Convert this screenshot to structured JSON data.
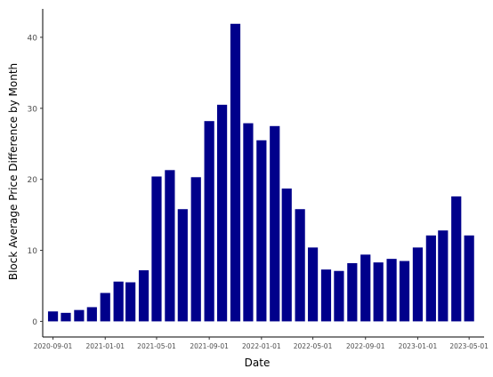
{
  "chart_data": {
    "type": "bar",
    "xlabel": "Date",
    "ylabel": "Block Average Price Difference by Month",
    "bar_color": "#00008b",
    "axis_color": "#000000",
    "ylim": [
      -2.2,
      44
    ],
    "yticks": [
      0,
      10,
      20,
      30,
      40
    ],
    "xlim": [
      "2020-08-08",
      "2023-06-05"
    ],
    "xticks": [
      "2020-09-01",
      "2021-01-01",
      "2021-05-01",
      "2021-09-01",
      "2022-01-01",
      "2022-05-01",
      "2022-09-01",
      "2023-01-01",
      "2023-05-01"
    ],
    "grid": false,
    "legend": "none",
    "x": [
      "2020-09-01",
      "2020-10-01",
      "2020-11-01",
      "2020-12-01",
      "2021-01-01",
      "2021-02-01",
      "2021-03-01",
      "2021-04-01",
      "2021-05-01",
      "2021-06-01",
      "2021-07-01",
      "2021-08-01",
      "2021-09-01",
      "2021-10-01",
      "2021-11-01",
      "2021-12-01",
      "2022-01-01",
      "2022-02-01",
      "2022-03-01",
      "2022-04-01",
      "2022-05-01",
      "2022-06-01",
      "2022-07-01",
      "2022-08-01",
      "2022-09-01",
      "2022-10-01",
      "2022-11-01",
      "2022-12-01",
      "2023-01-01",
      "2023-02-01",
      "2023-03-01",
      "2023-04-01",
      "2023-05-01"
    ],
    "values": [
      1.4,
      1.2,
      1.6,
      2.0,
      4.0,
      5.6,
      5.5,
      7.2,
      20.4,
      21.3,
      15.8,
      20.3,
      28.2,
      30.5,
      41.9,
      27.9,
      25.5,
      27.5,
      18.7,
      15.8,
      10.4,
      7.3,
      7.1,
      8.2,
      9.4,
      8.3,
      8.8,
      8.5,
      10.4,
      12.1,
      12.8,
      17.6,
      12.1
    ]
  }
}
